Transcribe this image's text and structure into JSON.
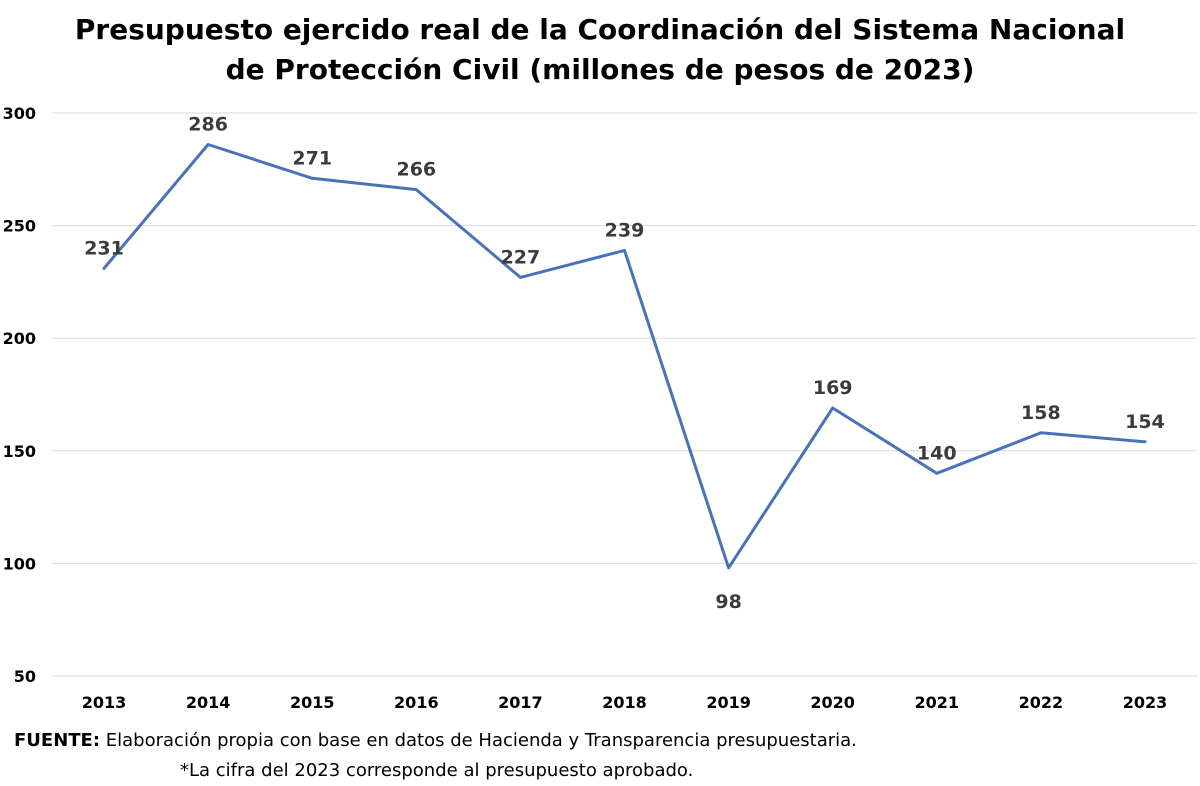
{
  "title_lines": [
    "Presupuesto ejercido real de la Coordinación del Sistema Nacional",
    "de Protección Civil (millones de pesos de 2023)"
  ],
  "footer": {
    "source_label": "FUENTE:",
    "source_text": " Elaboración propia con base en datos de Hacienda y Transparencia presupuestaria.",
    "note": "*La cifra del 2023 corresponde al presupuesto aprobado."
  },
  "colors": {
    "line": "#4a72b8",
    "grid": "#d9d9d9",
    "text": "#000000",
    "label": "#3b3b3b"
  },
  "chart_data": {
    "type": "line",
    "title": "Presupuesto ejercido real de la Coordinación del Sistema Nacional de Protección Civil (millones de pesos de 2023)",
    "xlabel": "",
    "ylabel": "",
    "categories": [
      "2013",
      "2014",
      "2015",
      "2016",
      "2017",
      "2018",
      "2019",
      "2020",
      "2021",
      "2022",
      "2023"
    ],
    "series": [
      {
        "values": [
          231,
          286,
          271,
          266,
          227,
          239,
          98,
          169,
          140,
          158,
          154
        ]
      }
    ],
    "ylim": [
      50,
      300
    ],
    "yticks": [
      50,
      100,
      150,
      200,
      250,
      300
    ],
    "grid": true,
    "legend": "none",
    "data_labels": true
  }
}
